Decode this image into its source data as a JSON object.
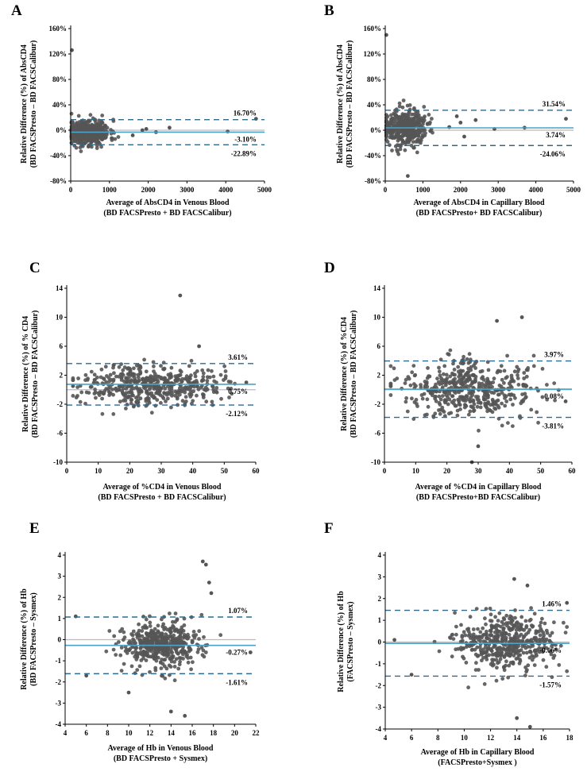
{
  "figure": {
    "colors": {
      "point": "#555555",
      "mean_line": "#4aa3c8",
      "loa_line": "#2e6a8e",
      "zero_line": "#bbbbbb",
      "axis": "#000000"
    }
  },
  "chart_data": [
    {
      "panel": "A",
      "type": "scatter",
      "title": "",
      "ylabel": [
        "Relative Difference (%) of AbsCD4",
        "(BD FACSPresto – BD FACSCalibur)"
      ],
      "xlabel": [
        "Average of AbsCD4 in Venous Blood",
        "(BD FACSPresto + BD FACSCalibur)"
      ],
      "xlim": [
        0,
        5000
      ],
      "ylim": [
        -80,
        160
      ],
      "xticks": [
        0,
        1000,
        2000,
        3000,
        4000,
        5000
      ],
      "xtick_labels": [
        "0",
        "1000",
        "2000",
        "3000",
        "4000",
        "5000"
      ],
      "yticks": [
        -80,
        -40,
        0,
        40,
        80,
        120,
        160
      ],
      "ytick_labels": [
        "-80%",
        "-40%",
        "0%",
        "40%",
        "80%",
        "120%",
        "160%"
      ],
      "mean": -3.1,
      "upper_loa": 16.7,
      "lower_loa": -22.89,
      "line_labels": {
        "upper": "16.70%",
        "mean": "-3.10%",
        "lower": "-22.89%"
      },
      "scatter": {
        "n": 420,
        "center": 450,
        "spread": 280,
        "xmin": 20,
        "xmax": 1400,
        "sd": 10,
        "ymin": -58,
        "ymax": 40,
        "seed": 11
      },
      "extra_points": [
        [
          30,
          126
        ],
        [
          4780,
          18
        ],
        [
          4050,
          -2
        ],
        [
          2550,
          4
        ],
        [
          2200,
          -3
        ],
        [
          1850,
          0
        ],
        [
          1600,
          -8
        ],
        [
          1950,
          2
        ]
      ]
    },
    {
      "panel": "B",
      "type": "scatter",
      "title": "",
      "ylabel": [
        "Relative Difference (%) of AbsCD4",
        "(BD FACSPresto – BD FACSCalibur)"
      ],
      "xlabel": [
        "Average of AbsCD4 in Capillary Blood",
        "(BD FACSPresto+ BD FACSCalibur)"
      ],
      "xlim": [
        0,
        5000
      ],
      "ylim": [
        -80,
        160
      ],
      "xticks": [
        0,
        1000,
        2000,
        3000,
        4000,
        5000
      ],
      "xtick_labels": [
        "0",
        "1000",
        "2000",
        "3000",
        "4000",
        "5000"
      ],
      "yticks": [
        -80,
        -40,
        0,
        40,
        80,
        120,
        160
      ],
      "ytick_labels": [
        "-80%",
        "-40%",
        "0%",
        "40%",
        "80%",
        "120%",
        "160%"
      ],
      "mean": 3.74,
      "upper_loa": 31.54,
      "lower_loa": -24.06,
      "line_labels": {
        "upper": "31.54%",
        "mean": "3.74%",
        "lower": "-24.06%"
      },
      "scatter": {
        "n": 420,
        "center": 500,
        "spread": 300,
        "xmin": 30,
        "xmax": 1500,
        "sd": 14,
        "ymin": -50,
        "ymax": 62,
        "seed": 23
      },
      "extra_points": [
        [
          30,
          150
        ],
        [
          600,
          -72
        ],
        [
          4800,
          18
        ],
        [
          2400,
          16
        ],
        [
          2100,
          -10
        ],
        [
          1900,
          22
        ],
        [
          1700,
          5
        ],
        [
          2900,
          2
        ],
        [
          3700,
          4
        ],
        [
          2000,
          12
        ]
      ]
    },
    {
      "panel": "C",
      "type": "scatter",
      "title": "",
      "ylabel": [
        "Relative Difference (%) of % CD4",
        "(BD FACSPresto – BD FACSCalibur)"
      ],
      "xlabel": [
        "Average of %CD4 in Venous Blood",
        "(BD FACSPresto + BD FACSCalibur)"
      ],
      "xlim": [
        0,
        60
      ],
      "ylim": [
        -10,
        14
      ],
      "xticks": [
        0,
        10,
        20,
        30,
        40,
        50,
        60
      ],
      "xtick_labels": [
        "0",
        "10",
        "20",
        "30",
        "40",
        "50",
        "60"
      ],
      "yticks": [
        -10,
        -6,
        -2,
        2,
        6,
        10,
        14
      ],
      "ytick_labels": [
        "-10",
        "-6",
        "-2",
        "2",
        "6",
        "10",
        "14"
      ],
      "mean": 0.75,
      "upper_loa": 3.61,
      "lower_loa": -2.12,
      "line_labels": {
        "upper": "3.61%",
        "mean": "0.75%",
        "lower": "-2.12%"
      },
      "scatter": {
        "n": 470,
        "center": 27,
        "spread": 11,
        "xmin": 2,
        "xmax": 58,
        "sd": 1.4,
        "ymin": -4.5,
        "ymax": 5.5,
        "seed": 37
      },
      "extra_points": [
        [
          36,
          13
        ],
        [
          42,
          6
        ],
        [
          57,
          1
        ],
        [
          2,
          0.5
        ]
      ]
    },
    {
      "panel": "D",
      "type": "scatter",
      "title": "",
      "ylabel": [
        "Relative Difference (%) of %CD4",
        "(BD FACSPresto – BD FACSCalibur)"
      ],
      "xlabel": [
        "Average of %CD4 in Capillary Blood",
        "(BD FACSPresto+BD FACSCalibur)"
      ],
      "xlim": [
        0,
        60
      ],
      "ylim": [
        -10,
        14
      ],
      "xticks": [
        0,
        10,
        20,
        30,
        40,
        50,
        60
      ],
      "xtick_labels": [
        "0",
        "10",
        "20",
        "30",
        "40",
        "50",
        "60"
      ],
      "yticks": [
        -10,
        -6,
        -2,
        2,
        6,
        10,
        14
      ],
      "ytick_labels": [
        "-10",
        "-6",
        "-2",
        "2",
        "6",
        "10",
        "14"
      ],
      "mean": 0.08,
      "upper_loa": 3.97,
      "lower_loa": -3.81,
      "line_labels": {
        "upper": "3.97%",
        "mean": "0.08%",
        "lower": "-3.81%"
      },
      "scatter": {
        "n": 470,
        "center": 27,
        "spread": 11,
        "xmin": 2,
        "xmax": 58,
        "sd": 2.0,
        "ymin": -8,
        "ymax": 9.6,
        "seed": 41
      },
      "extra_points": [
        [
          28,
          -10
        ],
        [
          44,
          10
        ],
        [
          36,
          9.5
        ],
        [
          58,
          -1.6
        ],
        [
          30,
          -7.8
        ]
      ]
    },
    {
      "panel": "E",
      "type": "scatter",
      "title": "",
      "ylabel": [
        "Relative Difference (%) of Hb",
        "(BD FACSPresto – Sysmex)"
      ],
      "xlabel": [
        "Average of Hb in Venous Blood",
        "(BD FACSPresto + Sysmex)"
      ],
      "xlim": [
        4,
        22
      ],
      "ylim": [
        -4,
        4
      ],
      "xticks": [
        4,
        6,
        8,
        10,
        12,
        14,
        16,
        18,
        20,
        22
      ],
      "xtick_labels": [
        "4",
        "6",
        "8",
        "10",
        "12",
        "14",
        "16",
        "18",
        "20",
        "22"
      ],
      "yticks": [
        -4,
        -3,
        -2,
        -1,
        0,
        1,
        2,
        3,
        4
      ],
      "ytick_labels": [
        "-4",
        "-3",
        "-2",
        "-1",
        "0",
        "1",
        "2",
        "3",
        "4"
      ],
      "mean": -0.27,
      "upper_loa": 1.07,
      "lower_loa": -1.61,
      "line_labels": {
        "upper": "1.07%",
        "mean": "-0.27%",
        "lower": "-1.61%"
      },
      "scatter": {
        "n": 470,
        "center": 13.2,
        "spread": 2.0,
        "xmin": 4.5,
        "xmax": 21.5,
        "sd": 0.55,
        "ymin": -2.2,
        "ymax": 2.3,
        "seed": 53
      },
      "extra_points": [
        [
          17,
          3.7
        ],
        [
          17.3,
          3.55
        ],
        [
          17.6,
          2.7
        ],
        [
          15.3,
          -3.6
        ],
        [
          14,
          -3.4
        ],
        [
          10,
          -2.5
        ],
        [
          5,
          1.1
        ],
        [
          21.5,
          -0.6
        ],
        [
          17.8,
          2.2
        ],
        [
          6,
          -1.7
        ]
      ]
    },
    {
      "panel": "F",
      "type": "scatter",
      "title": "",
      "ylabel": [
        "Relative Difference (%) of Hb",
        "(FACSPresto – Sysmex)"
      ],
      "xlabel": [
        "Average of Hb in Capillary Blood",
        "(FACSPresto+Sysmex )"
      ],
      "xlim": [
        4,
        18
      ],
      "ylim": [
        -4,
        4
      ],
      "xticks": [
        4,
        6,
        8,
        10,
        12,
        14,
        16,
        18
      ],
      "xtick_labels": [
        "4",
        "6",
        "8",
        "10",
        "12",
        "14",
        "16",
        "18"
      ],
      "yticks": [
        -4,
        -3,
        -2,
        -1,
        0,
        1,
        2,
        3,
        4
      ],
      "ytick_labels": [
        "-4",
        "-3",
        "-2",
        "-1",
        "0",
        "1",
        "2",
        "3",
        "4"
      ],
      "mean": -0.06,
      "upper_loa": 1.46,
      "lower_loa": -1.57,
      "line_labels": {
        "upper": "1.46%",
        "mean": "-0.06%",
        "lower": "-1.57%"
      },
      "scatter": {
        "n": 470,
        "center": 13.0,
        "spread": 1.8,
        "xmin": 4.6,
        "xmax": 17.8,
        "sd": 0.6,
        "ymin": -2.4,
        "ymax": 2.6,
        "seed": 67
      },
      "extra_points": [
        [
          13.8,
          2.9
        ],
        [
          14.8,
          2.6
        ],
        [
          15,
          -3.9
        ],
        [
          14,
          -3.5
        ],
        [
          6,
          -1.5
        ],
        [
          4.7,
          0.1
        ],
        [
          17.8,
          1.8
        ]
      ]
    }
  ]
}
